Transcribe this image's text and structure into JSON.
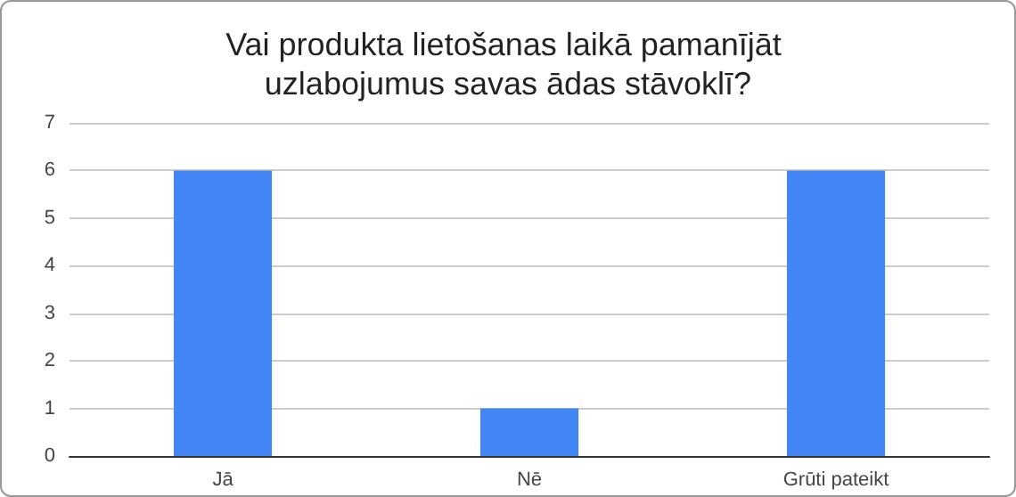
{
  "chart_data": {
    "type": "bar",
    "title": "Vai produkta lietošanas laikā pamanījāt uzlabojumus savas ādas stāvoklī?",
    "categories": [
      "Jā",
      "Nē",
      "Grūti pateikt"
    ],
    "values": [
      6,
      1,
      6
    ],
    "color": "#4285f4",
    "ylim": [
      0,
      7
    ],
    "yticks": [
      0,
      1,
      2,
      3,
      4,
      5,
      6,
      7
    ],
    "grid": "y"
  }
}
